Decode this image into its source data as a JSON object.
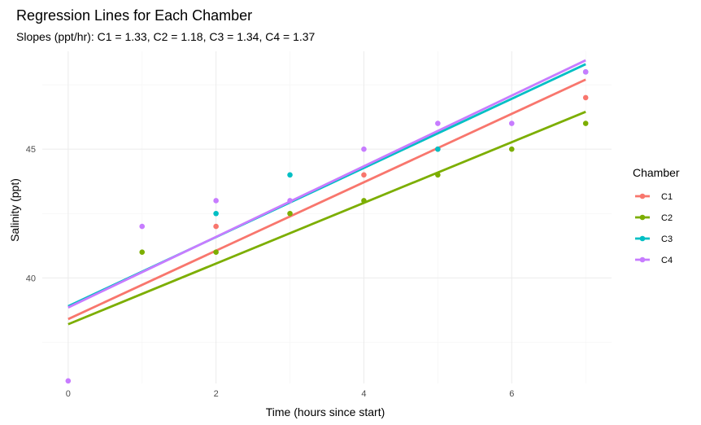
{
  "chart_data": {
    "type": "scatter",
    "title": "Regression Lines for Each Chamber",
    "subtitle": "Slopes (ppt/hr): C1 = 1.33, C2 = 1.18, C3 = 1.34, C4 = 1.37",
    "xlabel": "Time (hours since start)",
    "ylabel": "Salinity (ppt)",
    "xlim": [
      -0.35,
      7.35
    ],
    "ylim": [
      35.9,
      48.8
    ],
    "x_ticks": [
      0,
      2,
      4,
      6
    ],
    "x_tick_labels": [
      "0",
      "2",
      "4",
      "6"
    ],
    "y_ticks": [
      40,
      45
    ],
    "y_tick_labels": [
      "40",
      "45"
    ],
    "grid": true,
    "legend": {
      "title": "Chamber",
      "position": "right"
    },
    "series": [
      {
        "name": "C1",
        "color": "#F8766D",
        "points": [
          [
            2,
            42
          ],
          [
            4,
            44
          ],
          [
            5,
            45
          ],
          [
            7,
            47
          ]
        ],
        "line": {
          "x0": 0,
          "y0": 38.4,
          "x1": 7,
          "y1": 47.7
        }
      },
      {
        "name": "C2",
        "color": "#7CAE00",
        "points": [
          [
            1,
            41
          ],
          [
            2,
            41
          ],
          [
            3,
            42.5
          ],
          [
            4,
            43
          ],
          [
            5,
            44
          ],
          [
            6,
            45
          ],
          [
            7,
            46
          ]
        ],
        "line": {
          "x0": 0,
          "y0": 38.2,
          "x1": 7,
          "y1": 46.45
        }
      },
      {
        "name": "C3",
        "color": "#00BFC4",
        "points": [
          [
            2,
            42.5
          ],
          [
            3,
            44
          ],
          [
            5,
            45
          ],
          [
            7,
            48
          ]
        ],
        "line": {
          "x0": 0,
          "y0": 38.9,
          "x1": 7,
          "y1": 48.3
        }
      },
      {
        "name": "C4",
        "color": "#C77CFF",
        "points": [
          [
            0,
            36
          ],
          [
            1,
            42
          ],
          [
            2,
            43
          ],
          [
            3,
            43
          ],
          [
            4,
            45
          ],
          [
            5,
            46
          ],
          [
            6,
            46
          ],
          [
            7,
            48
          ]
        ],
        "line": {
          "x0": 0,
          "y0": 38.85,
          "x1": 7,
          "y1": 48.45
        }
      }
    ]
  }
}
